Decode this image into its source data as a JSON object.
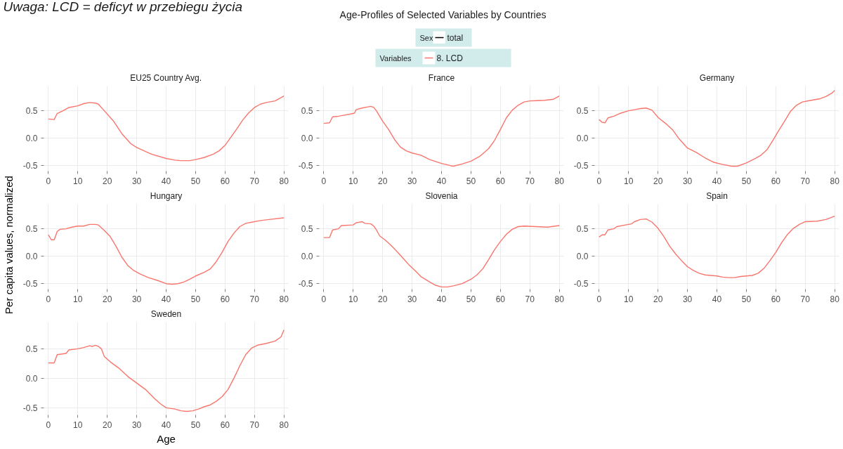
{
  "chart_data": [
    {
      "type": "line",
      "title": "EU25 Country Avg.",
      "annotations": [
        "Uwaga: LCD = deficyt w przebiegu życia",
        "Age-Profiles of Selected Variables by Countries",
        "Sex",
        "total"
      ],
      "legend": "top",
      "legend_title": "Variables",
      "xlim": [
        -1.5,
        81.5
      ],
      "ylim": [
        -0.6,
        0.95
      ],
      "xticks": [
        0,
        10,
        20,
        30,
        40,
        50,
        60,
        70,
        80
      ],
      "yticks": [
        {
          "value": -0.5,
          "label": "-0.5"
        },
        {
          "value": 0,
          "label": "0.0"
        },
        {
          "value": 0.5,
          "label": "0.5"
        }
      ],
      "grid": true,
      "series": [
        {
          "name": "8. LCD",
          "color": "#f8766d",
          "x": [
            0,
            2,
            3,
            5,
            7,
            10,
            12,
            14,
            16,
            17,
            19,
            22,
            25,
            28,
            30,
            35,
            40,
            43,
            45,
            48,
            50,
            53,
            56,
            58,
            60,
            62,
            64,
            66,
            68,
            70,
            72,
            74,
            77,
            80
          ],
          "values": [
            0.35,
            0.34,
            0.45,
            0.5,
            0.56,
            0.59,
            0.63,
            0.65,
            0.64,
            0.62,
            0.5,
            0.32,
            0.08,
            -0.1,
            -0.17,
            -0.29,
            -0.37,
            -0.4,
            -0.41,
            -0.41,
            -0.39,
            -0.35,
            -0.29,
            -0.23,
            -0.13,
            0.02,
            0.17,
            0.33,
            0.46,
            0.56,
            0.62,
            0.65,
            0.68,
            0.77
          ]
        }
      ]
    },
    {
      "type": "line",
      "title": "France",
      "xlim": [
        -1.5,
        81.5
      ],
      "ylim": [
        -0.6,
        0.95
      ],
      "xticks": [
        0,
        10,
        20,
        30,
        40,
        50,
        60,
        70,
        80
      ],
      "yticks": [
        {
          "value": -0.5,
          "label": "-0.5"
        },
        {
          "value": 0,
          "label": "0.0"
        },
        {
          "value": 0.5,
          "label": "0.5"
        }
      ],
      "grid": true,
      "series": [
        {
          "color": "#f8766d",
          "x": [
            0,
            2,
            3,
            5,
            7,
            10,
            10.5,
            11,
            13,
            15,
            16,
            17,
            18,
            20,
            22,
            24,
            26,
            28,
            30,
            33,
            36,
            40,
            43,
            44,
            47,
            50,
            53,
            56,
            58,
            60,
            62,
            64,
            66,
            68,
            70,
            75,
            78,
            80
          ],
          "values": [
            0.27,
            0.28,
            0.39,
            0.4,
            0.42,
            0.45,
            0.46,
            0.52,
            0.55,
            0.57,
            0.58,
            0.56,
            0.49,
            0.31,
            0.16,
            -0.02,
            -0.16,
            -0.23,
            -0.27,
            -0.31,
            -0.39,
            -0.46,
            -0.5,
            -0.51,
            -0.47,
            -0.42,
            -0.33,
            -0.19,
            -0.04,
            0.16,
            0.37,
            0.51,
            0.6,
            0.66,
            0.68,
            0.69,
            0.71,
            0.77
          ]
        }
      ]
    },
    {
      "type": "line",
      "title": "Germany",
      "xlim": [
        -1.5,
        81.5
      ],
      "ylim": [
        -0.6,
        0.95
      ],
      "xticks": [
        0,
        10,
        20,
        30,
        40,
        50,
        60,
        70,
        80
      ],
      "yticks": [
        {
          "value": -0.5,
          "label": "-0.5"
        },
        {
          "value": 0,
          "label": "0.0"
        },
        {
          "value": 0.5,
          "label": "0.5"
        }
      ],
      "grid": true,
      "series": [
        {
          "color": "#f8766d",
          "x": [
            0,
            1,
            2,
            3,
            5,
            7,
            10,
            12,
            14,
            16,
            18,
            20,
            23,
            25,
            27,
            30,
            33,
            36,
            39,
            42,
            45,
            47,
            50,
            53,
            55,
            57,
            59,
            61,
            63,
            65,
            67,
            69,
            72,
            75,
            77,
            79,
            80
          ],
          "values": [
            0.34,
            0.29,
            0.28,
            0.37,
            0.4,
            0.45,
            0.5,
            0.52,
            0.54,
            0.55,
            0.51,
            0.38,
            0.25,
            0.15,
            0.0,
            -0.18,
            -0.26,
            -0.36,
            -0.44,
            -0.48,
            -0.51,
            -0.51,
            -0.45,
            -0.37,
            -0.31,
            -0.21,
            -0.04,
            0.14,
            0.31,
            0.49,
            0.6,
            0.66,
            0.69,
            0.72,
            0.76,
            0.82,
            0.87
          ]
        }
      ]
    },
    {
      "type": "line",
      "title": "Hungary",
      "ylabel": "Per capita values, normalized",
      "xlim": [
        -1.5,
        81.5
      ],
      "ylim": [
        -0.6,
        0.95
      ],
      "xticks": [
        0,
        10,
        20,
        30,
        40,
        50,
        60,
        70,
        80
      ],
      "yticks": [
        {
          "value": -0.5,
          "label": "-0.5"
        },
        {
          "value": 0,
          "label": "0.0"
        },
        {
          "value": 0.5,
          "label": "0.5"
        }
      ],
      "grid": true,
      "series": [
        {
          "color": "#f8766d",
          "x": [
            0,
            1,
            2,
            3,
            4,
            6,
            8,
            10,
            12,
            14,
            16,
            17,
            19,
            21,
            23,
            25,
            27,
            29,
            31,
            34,
            37,
            40,
            42,
            44,
            46,
            48,
            50,
            53,
            55,
            57,
            59,
            61,
            63,
            65,
            67,
            69,
            72,
            75,
            80
          ],
          "values": [
            0.39,
            0.3,
            0.3,
            0.45,
            0.49,
            0.5,
            0.53,
            0.55,
            0.55,
            0.58,
            0.58,
            0.57,
            0.47,
            0.36,
            0.18,
            -0.02,
            -0.17,
            -0.26,
            -0.32,
            -0.39,
            -0.44,
            -0.5,
            -0.51,
            -0.5,
            -0.47,
            -0.42,
            -0.36,
            -0.29,
            -0.23,
            -0.1,
            0.07,
            0.27,
            0.42,
            0.54,
            0.6,
            0.62,
            0.65,
            0.67,
            0.7
          ]
        }
      ]
    },
    {
      "type": "line",
      "title": "Slovenia",
      "xlim": [
        -1.5,
        81.5
      ],
      "ylim": [
        -0.6,
        0.95
      ],
      "xticks": [
        0,
        10,
        20,
        30,
        40,
        50,
        60,
        70,
        80
      ],
      "yticks": [
        {
          "value": -0.5,
          "label": "-0.5"
        },
        {
          "value": 0,
          "label": "0.0"
        },
        {
          "value": 0.5,
          "label": "0.5"
        }
      ],
      "grid": true,
      "series": [
        {
          "color": "#f8766d",
          "x": [
            0,
            2,
            3,
            5,
            6,
            10,
            11,
            13,
            14,
            16,
            17,
            18,
            19,
            21,
            23,
            25,
            27,
            29,
            31,
            33,
            36,
            38,
            40,
            42,
            44,
            47,
            50,
            52,
            54,
            56,
            58,
            60,
            62,
            64,
            66,
            68,
            72,
            76,
            80
          ],
          "values": [
            0.34,
            0.34,
            0.48,
            0.5,
            0.56,
            0.57,
            0.61,
            0.63,
            0.6,
            0.59,
            0.55,
            0.47,
            0.37,
            0.29,
            0.19,
            0.08,
            -0.04,
            -0.16,
            -0.26,
            -0.37,
            -0.47,
            -0.53,
            -0.56,
            -0.56,
            -0.54,
            -0.5,
            -0.42,
            -0.34,
            -0.23,
            -0.06,
            0.12,
            0.27,
            0.4,
            0.49,
            0.54,
            0.55,
            0.54,
            0.53,
            0.56
          ]
        }
      ]
    },
    {
      "type": "line",
      "title": "Spain",
      "xlim": [
        -1.5,
        81.5
      ],
      "ylim": [
        -0.6,
        0.95
      ],
      "xticks": [
        0,
        10,
        20,
        30,
        40,
        50,
        60,
        70,
        80
      ],
      "yticks": [
        {
          "value": -0.5,
          "label": "-0.5"
        },
        {
          "value": 0,
          "label": "0.0"
        },
        {
          "value": 0.5,
          "label": "0.5"
        }
      ],
      "grid": true,
      "series": [
        {
          "color": "#f8766d",
          "x": [
            0,
            1,
            2,
            3,
            5,
            6,
            9,
            11,
            12,
            14,
            16,
            18,
            20,
            22,
            24,
            26,
            28,
            30,
            32,
            34,
            36,
            38,
            40,
            42,
            44,
            46,
            48,
            50,
            52,
            54,
            56,
            58,
            60,
            62,
            64,
            66,
            68,
            70,
            74,
            77,
            80
          ],
          "values": [
            0.35,
            0.39,
            0.39,
            0.48,
            0.5,
            0.54,
            0.57,
            0.59,
            0.63,
            0.67,
            0.68,
            0.62,
            0.51,
            0.36,
            0.18,
            0.04,
            -0.08,
            -0.19,
            -0.26,
            -0.31,
            -0.34,
            -0.35,
            -0.36,
            -0.38,
            -0.39,
            -0.39,
            -0.37,
            -0.36,
            -0.35,
            -0.31,
            -0.22,
            -0.08,
            0.07,
            0.25,
            0.4,
            0.51,
            0.58,
            0.63,
            0.64,
            0.67,
            0.73
          ]
        }
      ]
    },
    {
      "type": "line",
      "title": "Sweden",
      "xlabel": "Age",
      "xlim": [
        -1.5,
        81.5
      ],
      "ylim": [
        -0.62,
        0.95
      ],
      "xticks": [
        0,
        10,
        20,
        30,
        40,
        50,
        60,
        70,
        80
      ],
      "yticks": [
        {
          "value": -0.5,
          "label": "-0.5"
        },
        {
          "value": 0,
          "label": "0.0"
        },
        {
          "value": 0.5,
          "label": "0.5"
        }
      ],
      "grid": true,
      "series": [
        {
          "color": "#f8766d",
          "x": [
            0,
            2,
            3,
            6,
            7,
            10,
            12,
            14,
            15,
            16,
            17,
            18,
            19,
            21,
            24,
            27,
            30,
            33,
            36,
            38,
            40,
            43,
            45,
            47,
            49,
            51,
            53,
            55,
            57,
            59,
            61,
            63,
            65,
            67,
            69,
            71,
            74,
            77,
            79,
            80
          ],
          "values": [
            0.26,
            0.26,
            0.4,
            0.42,
            0.48,
            0.5,
            0.52,
            0.55,
            0.54,
            0.56,
            0.54,
            0.5,
            0.37,
            0.28,
            0.17,
            0.03,
            -0.08,
            -0.19,
            -0.34,
            -0.43,
            -0.5,
            -0.52,
            -0.55,
            -0.56,
            -0.55,
            -0.52,
            -0.48,
            -0.45,
            -0.39,
            -0.31,
            -0.19,
            0.0,
            0.21,
            0.4,
            0.51,
            0.56,
            0.59,
            0.63,
            0.7,
            0.82
          ]
        }
      ]
    }
  ]
}
